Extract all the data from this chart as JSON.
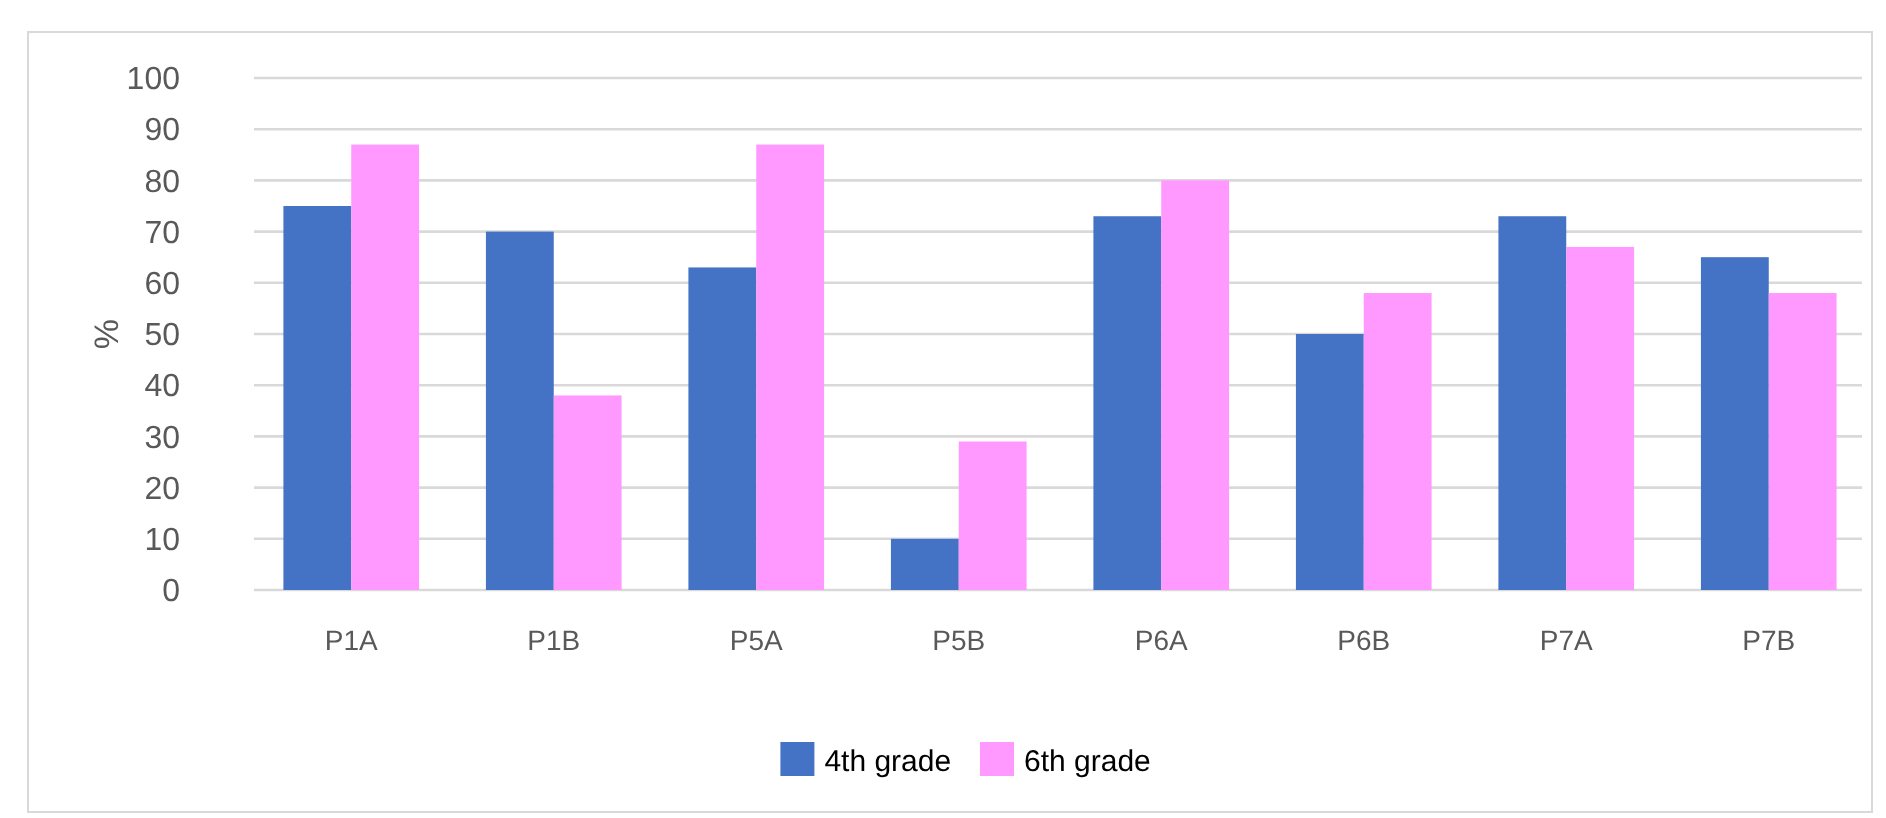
{
  "chart_data": {
    "type": "bar",
    "ylabel": "%",
    "categories": [
      "P1A",
      "P1B",
      "P5A",
      "P5B",
      "P6A",
      "P6B",
      "P7A",
      "P7B"
    ],
    "series": [
      {
        "name": "4th grade",
        "color": "#4472c4",
        "values": [
          75,
          70,
          63,
          10,
          73,
          50,
          73,
          65
        ]
      },
      {
        "name": "6th grade",
        "color": "#ff99ff",
        "values": [
          87,
          38,
          87,
          29,
          80,
          58,
          67,
          58
        ]
      }
    ],
    "ylim": [
      0,
      100
    ],
    "yticks": [
      0,
      10,
      20,
      30,
      40,
      50,
      60,
      70,
      80,
      90,
      100
    ],
    "grid": "y",
    "legend": "bottom"
  }
}
